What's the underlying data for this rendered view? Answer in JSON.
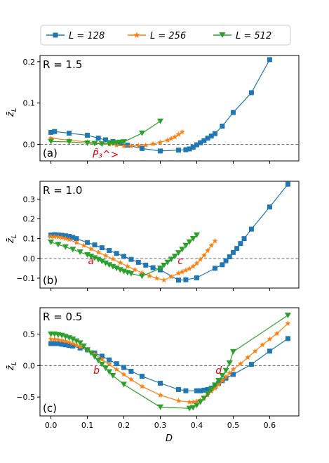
{
  "legend": [
    {
      "label": "L = 128",
      "color": "#1f77b4",
      "marker": "square"
    },
    {
      "label": "L = 256",
      "color": "#ff7f0e",
      "marker": "star"
    },
    {
      "label": "L = 512",
      "color": "#2ca02c",
      "marker": "triangle-down"
    }
  ],
  "xlabel": "D",
  "chart_data": [
    {
      "type": "line",
      "panel_label": "(a)",
      "r_label": "R = 1.5",
      "ylabel": "z̄_L",
      "xlim": [
        -0.03,
        0.68
      ],
      "ylim": [
        -0.04,
        0.215
      ],
      "yticks": [
        0.0,
        0.1,
        0.2
      ],
      "ytick_labels": [
        "0.0",
        "0.1",
        "0.2"
      ],
      "xticks": [
        0.0,
        0.1,
        0.2,
        0.3,
        0.4,
        0.5,
        0.6
      ],
      "annotations": [
        {
          "text": "P̃₃^>",
          "x": 0.15,
          "y": -0.032
        }
      ],
      "zero_line": true,
      "series": [
        {
          "name": "L = 128",
          "x": [
            0.0,
            0.01,
            0.05,
            0.1,
            0.13,
            0.15,
            0.17,
            0.19,
            0.21,
            0.25,
            0.3,
            0.35,
            0.37,
            0.38,
            0.39,
            0.4,
            0.41,
            0.42,
            0.43,
            0.44,
            0.45,
            0.47,
            0.5,
            0.55,
            0.6
          ],
          "y": [
            0.029,
            0.031,
            0.027,
            0.022,
            0.015,
            0.011,
            0.007,
            0.002,
            -0.002,
            -0.01,
            -0.016,
            -0.014,
            -0.013,
            -0.011,
            -0.007,
            -0.001,
            0.004,
            0.009,
            0.015,
            0.02,
            0.026,
            0.044,
            0.077,
            0.125,
            0.205
          ]
        },
        {
          "name": "L = 256",
          "x": [
            0.0,
            0.05,
            0.1,
            0.14,
            0.16,
            0.18,
            0.2,
            0.22,
            0.24,
            0.26,
            0.28,
            0.3,
            0.32,
            0.33,
            0.34,
            0.35,
            0.36
          ],
          "y": [
            0.015,
            0.01,
            0.006,
            0.002,
            0.0,
            -0.002,
            -0.004,
            -0.004,
            -0.003,
            -0.002,
            0.001,
            0.005,
            0.01,
            0.014,
            0.018,
            0.024,
            0.03
          ]
        },
        {
          "name": "L = 512",
          "x": [
            0.0,
            0.05,
            0.1,
            0.12,
            0.14,
            0.16,
            0.17,
            0.18,
            0.19,
            0.2,
            0.25,
            0.3
          ],
          "y": [
            0.007,
            0.006,
            0.003,
            0.002,
            0.001,
            0.002,
            0.003,
            0.004,
            0.005,
            0.006,
            0.027,
            0.056
          ]
        }
      ]
    },
    {
      "type": "line",
      "panel_label": "(b)",
      "r_label": "R = 1.0",
      "ylabel": "z̄_L",
      "xlim": [
        -0.03,
        0.68
      ],
      "ylim": [
        -0.15,
        0.39
      ],
      "yticks": [
        -0.1,
        0.0,
        0.1,
        0.2,
        0.3
      ],
      "ytick_labels": [
        "−0.1",
        "0.0",
        "0.1",
        "0.2",
        "0.3"
      ],
      "xticks": [
        0.0,
        0.1,
        0.2,
        0.3,
        0.4,
        0.5,
        0.6
      ],
      "annotations": [
        {
          "text": "a",
          "x": 0.11,
          "y": -0.03
        },
        {
          "text": "c",
          "x": 0.355,
          "y": -0.03
        }
      ],
      "zero_line": true,
      "series": [
        {
          "name": "L = 128",
          "x": [
            0.0,
            0.01,
            0.02,
            0.03,
            0.04,
            0.05,
            0.06,
            0.07,
            0.1,
            0.12,
            0.14,
            0.16,
            0.18,
            0.2,
            0.22,
            0.24,
            0.26,
            0.28,
            0.3,
            0.35,
            0.37,
            0.4,
            0.45,
            0.47,
            0.48,
            0.49,
            0.5,
            0.51,
            0.52,
            0.53,
            0.55,
            0.6,
            0.65
          ],
          "y": [
            0.118,
            0.12,
            0.119,
            0.117,
            0.114,
            0.111,
            0.106,
            0.1,
            0.08,
            0.068,
            0.054,
            0.04,
            0.025,
            0.01,
            -0.005,
            -0.02,
            -0.034,
            -0.047,
            -0.058,
            -0.11,
            -0.108,
            -0.098,
            -0.05,
            -0.032,
            -0.012,
            0.008,
            0.03,
            0.05,
            0.075,
            0.1,
            0.148,
            0.26,
            0.375
          ]
        },
        {
          "name": "L = 256",
          "x": [
            0.0,
            0.01,
            0.02,
            0.03,
            0.04,
            0.05,
            0.07,
            0.09,
            0.11,
            0.13,
            0.15,
            0.17,
            0.19,
            0.21,
            0.23,
            0.25,
            0.27,
            0.29,
            0.31,
            0.33,
            0.35,
            0.36,
            0.37,
            0.38,
            0.39,
            0.4,
            0.41,
            0.42,
            0.43,
            0.44,
            0.45
          ],
          "y": [
            0.11,
            0.11,
            0.108,
            0.105,
            0.1,
            0.095,
            0.08,
            0.065,
            0.048,
            0.031,
            0.014,
            -0.003,
            -0.022,
            -0.04,
            -0.057,
            -0.073,
            -0.088,
            -0.1,
            -0.11,
            -0.093,
            -0.075,
            -0.068,
            -0.06,
            -0.052,
            -0.04,
            -0.025,
            -0.005,
            0.015,
            0.04,
            0.065,
            0.088
          ]
        },
        {
          "name": "L = 512",
          "x": [
            0.0,
            0.02,
            0.04,
            0.06,
            0.08,
            0.1,
            0.11,
            0.12,
            0.13,
            0.14,
            0.15,
            0.16,
            0.17,
            0.18,
            0.19,
            0.2,
            0.21,
            0.22,
            0.25,
            0.3,
            0.31,
            0.32,
            0.33,
            0.34,
            0.35,
            0.36,
            0.37,
            0.38,
            0.39,
            0.4
          ],
          "y": [
            0.082,
            0.07,
            0.058,
            0.045,
            0.032,
            0.018,
            0.01,
            0.002,
            -0.006,
            -0.015,
            -0.024,
            -0.033,
            -0.042,
            -0.05,
            -0.058,
            -0.066,
            -0.072,
            -0.077,
            -0.09,
            -0.05,
            -0.035,
            -0.02,
            -0.005,
            0.01,
            0.028,
            0.045,
            0.065,
            0.083,
            0.1,
            0.118
          ]
        }
      ]
    },
    {
      "type": "line",
      "panel_label": "(c)",
      "r_label": "R = 0.5",
      "ylabel": "z̄_L",
      "xlim": [
        -0.03,
        0.68
      ],
      "ylim": [
        -0.8,
        0.92
      ],
      "yticks": [
        -0.5,
        0.0,
        0.5
      ],
      "ytick_labels": [
        "−0.5",
        "0.0",
        "0.5"
      ],
      "xticks": [
        0.0,
        0.1,
        0.2,
        0.3,
        0.4,
        0.5,
        0.6
      ],
      "xtick_labels": [
        "0.0",
        "0.1",
        "0.2",
        "0.3",
        "0.4",
        "0.5",
        "0.6"
      ],
      "annotations": [
        {
          "text": "b",
          "x": 0.125,
          "y": -0.13
        },
        {
          "text": "d",
          "x": 0.46,
          "y": -0.13
        }
      ],
      "zero_line": true,
      "series": [
        {
          "name": "L = 128",
          "x": [
            0.0,
            0.01,
            0.02,
            0.03,
            0.04,
            0.05,
            0.06,
            0.08,
            0.1,
            0.12,
            0.14,
            0.16,
            0.18,
            0.2,
            0.22,
            0.25,
            0.3,
            0.35,
            0.37,
            0.4,
            0.41,
            0.42,
            0.43,
            0.44,
            0.45,
            0.46,
            0.47,
            0.48,
            0.5,
            0.55,
            0.6,
            0.65
          ],
          "y": [
            0.35,
            0.35,
            0.35,
            0.34,
            0.33,
            0.32,
            0.31,
            0.28,
            0.25,
            0.2,
            0.15,
            0.09,
            0.03,
            -0.03,
            -0.09,
            -0.17,
            -0.28,
            -0.38,
            -0.4,
            -0.4,
            -0.4,
            -0.39,
            -0.38,
            -0.36,
            -0.33,
            -0.28,
            -0.24,
            -0.2,
            -0.14,
            0.02,
            0.23,
            0.43
          ]
        },
        {
          "name": "L = 256",
          "x": [
            0.0,
            0.01,
            0.02,
            0.03,
            0.04,
            0.05,
            0.06,
            0.07,
            0.08,
            0.1,
            0.12,
            0.14,
            0.16,
            0.18,
            0.2,
            0.22,
            0.25,
            0.3,
            0.35,
            0.38,
            0.39,
            0.4,
            0.41,
            0.42,
            0.43,
            0.44,
            0.45,
            0.46,
            0.47,
            0.48,
            0.49,
            0.5,
            0.52,
            0.54,
            0.56,
            0.58,
            0.6,
            0.62,
            0.65
          ],
          "y": [
            0.42,
            0.42,
            0.41,
            0.4,
            0.39,
            0.37,
            0.35,
            0.33,
            0.3,
            0.25,
            0.18,
            0.1,
            0.02,
            -0.06,
            -0.14,
            -0.22,
            -0.33,
            -0.47,
            -0.56,
            -0.58,
            -0.58,
            -0.57,
            -0.55,
            -0.52,
            -0.47,
            -0.41,
            -0.36,
            -0.3,
            -0.24,
            -0.18,
            -0.12,
            -0.06,
            0.03,
            0.13,
            0.23,
            0.33,
            0.42,
            0.51,
            0.67
          ]
        },
        {
          "name": "L = 512",
          "x": [
            0.0,
            0.01,
            0.02,
            0.03,
            0.04,
            0.05,
            0.06,
            0.07,
            0.08,
            0.09,
            0.1,
            0.11,
            0.12,
            0.13,
            0.14,
            0.15,
            0.16,
            0.17,
            0.2,
            0.3,
            0.38,
            0.39,
            0.4,
            0.41,
            0.42,
            0.43,
            0.44,
            0.45,
            0.46,
            0.47,
            0.48,
            0.49,
            0.5,
            0.65
          ],
          "y": [
            0.5,
            0.5,
            0.49,
            0.48,
            0.46,
            0.44,
            0.42,
            0.39,
            0.36,
            0.31,
            0.25,
            0.2,
            0.14,
            0.08,
            0.02,
            -0.04,
            -0.1,
            -0.16,
            -0.3,
            -0.66,
            -0.68,
            -0.67,
            -0.63,
            -0.58,
            -0.52,
            -0.45,
            -0.38,
            -0.31,
            -0.24,
            -0.16,
            -0.08,
            0.04,
            0.22,
            0.8
          ]
        }
      ]
    }
  ]
}
